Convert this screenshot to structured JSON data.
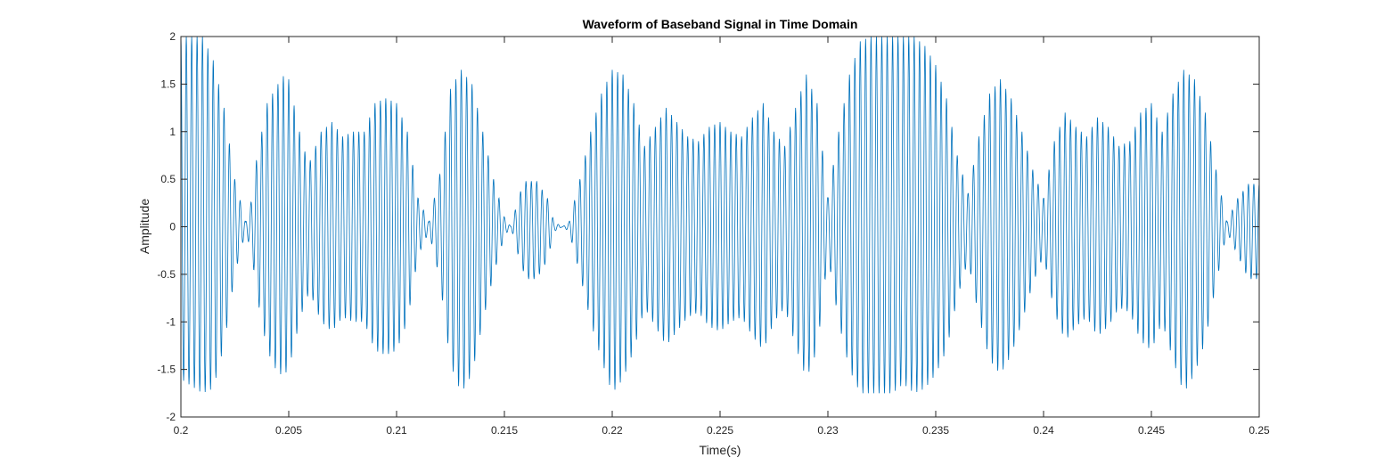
{
  "chart_data": {
    "type": "line",
    "title": "Waveform of Baseband Signal in Time Domain",
    "xlabel": "Time(s)",
    "ylabel": "Amplitude",
    "xlim": [
      0.2,
      0.25
    ],
    "ylim": [
      -2,
      2
    ],
    "x_ticks": [
      0.2,
      0.205,
      0.21,
      0.215,
      0.22,
      0.225,
      0.23,
      0.235,
      0.24,
      0.245,
      0.25
    ],
    "x_tick_labels": [
      "0.2",
      "0.205",
      "0.21",
      "0.215",
      "0.22",
      "0.225",
      "0.23",
      "0.235",
      "0.24",
      "0.245",
      "0.25"
    ],
    "y_ticks": [
      -2,
      -1.5,
      -1,
      -0.5,
      0,
      0.5,
      1,
      1.5,
      2
    ],
    "y_tick_labels": [
      "-2",
      "-1.5",
      "-1",
      "-0.5",
      "0",
      "0.5",
      "1",
      "1.5",
      "2"
    ],
    "grid": false,
    "series": [
      {
        "color": "#0072BD",
        "carrier_frequency_hz": 4000,
        "envelope_upper": {
          "t": [
            0.2,
            0.201,
            0.2015,
            0.202,
            0.2025,
            0.203,
            0.2033,
            0.2035,
            0.204,
            0.2045,
            0.2048,
            0.205,
            0.2055,
            0.2058,
            0.206,
            0.2065,
            0.207,
            0.2075,
            0.208,
            0.2085,
            0.209,
            0.2095,
            0.21,
            0.2105,
            0.211,
            0.2115,
            0.212,
            0.2125,
            0.213,
            0.2135,
            0.214,
            0.2145,
            0.215,
            0.2153,
            0.2157,
            0.216,
            0.2165,
            0.217,
            0.2173,
            0.2177,
            0.218,
            0.2185,
            0.219,
            0.2195,
            0.22,
            0.2205,
            0.221,
            0.2215,
            0.222,
            0.2225,
            0.223,
            0.2235,
            0.224,
            0.2245,
            0.225,
            0.2255,
            0.226,
            0.2265,
            0.227,
            0.2275,
            0.228,
            0.2285,
            0.229,
            0.2295,
            0.23,
            0.2305,
            0.231,
            0.2315,
            0.232,
            0.2325,
            0.233,
            0.2335,
            0.234,
            0.2345,
            0.235,
            0.2355,
            0.236,
            0.2365,
            0.237,
            0.2375,
            0.238,
            0.2385,
            0.239,
            0.2395,
            0.24,
            0.2405,
            0.241,
            0.2415,
            0.242,
            0.2425,
            0.243,
            0.2435,
            0.244,
            0.2445,
            0.245,
            0.2455,
            0.246,
            0.2465,
            0.247,
            0.2475,
            0.248,
            0.2485,
            0.249,
            0.2495,
            0.25
          ],
          "value": [
            2.0,
            2.0,
            1.75,
            1.25,
            0.5,
            0.05,
            0.3,
            0.7,
            1.3,
            1.5,
            1.6,
            1.55,
            1.0,
            0.75,
            0.7,
            1.0,
            1.1,
            0.95,
            1.0,
            1.0,
            1.3,
            1.35,
            1.3,
            1.0,
            0.3,
            0.05,
            0.55,
            1.45,
            1.65,
            1.5,
            1.0,
            0.5,
            0.1,
            0.0,
            0.35,
            0.48,
            0.48,
            0.3,
            0.05,
            0.0,
            0.05,
            0.5,
            1.0,
            1.4,
            1.65,
            1.6,
            1.3,
            0.85,
            1.05,
            1.25,
            1.1,
            0.95,
            0.9,
            1.05,
            1.1,
            1.0,
            0.95,
            1.15,
            1.3,
            1.0,
            0.85,
            1.25,
            1.6,
            1.3,
            0.3,
            1.0,
            1.6,
            1.95,
            2.0,
            2.0,
            2.0,
            2.0,
            2.0,
            1.9,
            1.7,
            1.35,
            0.75,
            0.35,
            0.95,
            1.4,
            1.55,
            1.35,
            1.0,
            0.6,
            0.3,
            0.9,
            1.2,
            1.05,
            0.95,
            1.15,
            1.05,
            0.85,
            0.9,
            1.2,
            1.3,
            1.0,
            1.4,
            1.65,
            1.55,
            1.2,
            0.6,
            0.05,
            0.3,
            0.45,
            0.45
          ]
        },
        "envelope_lower": {
          "t": [
            0.2,
            0.201,
            0.2015,
            0.202,
            0.2025,
            0.203,
            0.2033,
            0.2035,
            0.204,
            0.2045,
            0.2048,
            0.205,
            0.2055,
            0.2058,
            0.206,
            0.2065,
            0.207,
            0.2075,
            0.208,
            0.2085,
            0.209,
            0.2095,
            0.21,
            0.2105,
            0.211,
            0.2115,
            0.212,
            0.2125,
            0.213,
            0.2135,
            0.214,
            0.2145,
            0.215,
            0.2153,
            0.2157,
            0.216,
            0.2165,
            0.217,
            0.2173,
            0.2177,
            0.218,
            0.2185,
            0.219,
            0.2195,
            0.22,
            0.2205,
            0.221,
            0.2215,
            0.222,
            0.2225,
            0.223,
            0.2235,
            0.224,
            0.2245,
            0.225,
            0.2255,
            0.226,
            0.2265,
            0.227,
            0.2275,
            0.228,
            0.2285,
            0.229,
            0.2295,
            0.23,
            0.2305,
            0.231,
            0.2315,
            0.232,
            0.2325,
            0.233,
            0.2335,
            0.234,
            0.2345,
            0.235,
            0.2355,
            0.236,
            0.2365,
            0.237,
            0.2375,
            0.238,
            0.2385,
            0.239,
            0.2395,
            0.24,
            0.2405,
            0.241,
            0.2415,
            0.242,
            0.2425,
            0.243,
            0.2435,
            0.244,
            0.2445,
            0.245,
            0.2455,
            0.246,
            0.2465,
            0.247,
            0.2475,
            0.248,
            0.2485,
            0.249,
            0.2495,
            0.25
          ],
          "value": [
            -1.6,
            -1.75,
            -1.7,
            -1.25,
            -0.5,
            -0.05,
            -0.3,
            -0.7,
            -1.3,
            -1.55,
            -1.55,
            -1.5,
            -1.0,
            -0.75,
            -0.7,
            -1.0,
            -1.1,
            -0.95,
            -1.0,
            -1.0,
            -1.3,
            -1.35,
            -1.3,
            -1.0,
            -0.3,
            -0.05,
            -0.55,
            -1.45,
            -1.75,
            -1.55,
            -1.0,
            -0.5,
            -0.1,
            0.0,
            -0.35,
            -0.55,
            -0.55,
            -0.35,
            -0.05,
            0.0,
            -0.05,
            -0.5,
            -1.0,
            -1.4,
            -1.75,
            -1.6,
            -1.3,
            -0.85,
            -1.05,
            -1.25,
            -1.1,
            -0.95,
            -0.9,
            -1.05,
            -1.1,
            -1.0,
            -0.95,
            -1.15,
            -1.3,
            -1.0,
            -0.85,
            -1.25,
            -1.6,
            -1.3,
            -0.3,
            -1.0,
            -1.5,
            -1.75,
            -1.75,
            -1.75,
            -1.75,
            -1.65,
            -1.75,
            -1.7,
            -1.55,
            -1.3,
            -0.75,
            -0.35,
            -0.95,
            -1.4,
            -1.55,
            -1.35,
            -1.0,
            -0.6,
            -0.3,
            -0.9,
            -1.2,
            -1.05,
            -0.95,
            -1.15,
            -1.05,
            -0.85,
            -0.9,
            -1.2,
            -1.3,
            -1.0,
            -1.4,
            -1.75,
            -1.55,
            -1.2,
            -0.6,
            -0.05,
            -0.3,
            -0.55,
            -0.55
          ]
        }
      }
    ]
  }
}
